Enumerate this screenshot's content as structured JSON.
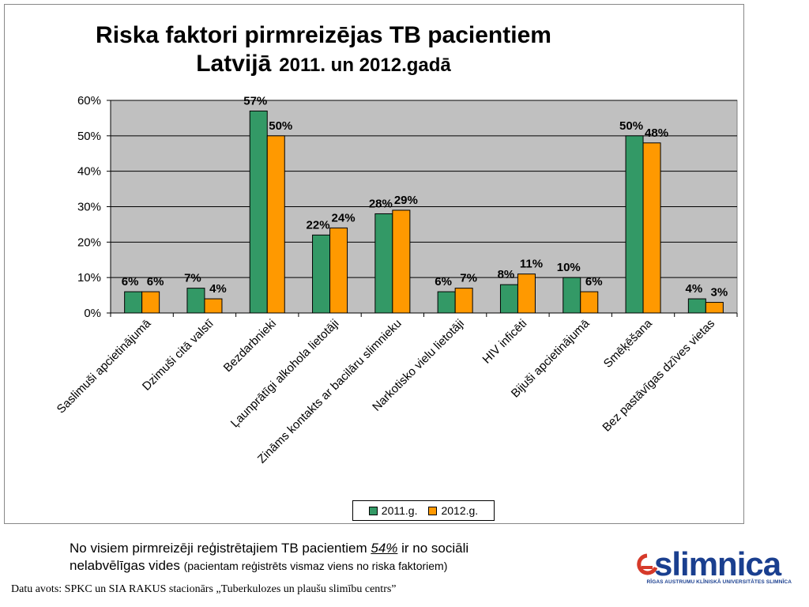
{
  "title": {
    "line1": "Riska faktori pirmreizējas TB pacientiem",
    "line2a": "Latvijā",
    "line2b": "2011. un 2012.gadā"
  },
  "chart_data": {
    "type": "bar",
    "categories": [
      "Saslimuši apcietinājumā",
      "Dzimuši citā valstī",
      "Bezdarbnieki",
      "Ļaunprātīgi alkohola lietotāji",
      "Zināms kontakts ar bacilāru slimnieku",
      "Narkotisko vielu lietotāji",
      "HIV inficēti",
      "Bijuši apcietinājumā",
      "Smēķēšana",
      "Bez pastāvīgas dzīves vietas"
    ],
    "series": [
      {
        "name": "2011.g.",
        "color": "#339966",
        "values": [
          6,
          7,
          57,
          22,
          28,
          6,
          8,
          10,
          50,
          4
        ],
        "labels": [
          "6%",
          "7%",
          "57%",
          "22%",
          "28%",
          "6%",
          "8%",
          "10%",
          "50%",
          "4%"
        ]
      },
      {
        "name": "2012.g.",
        "color": "#FF9900",
        "values": [
          6,
          4,
          50,
          24,
          29,
          7,
          11,
          6,
          48,
          3
        ],
        "labels": [
          "6%",
          "4%",
          "50%",
          "24%",
          "29%",
          "7%",
          "11%",
          "6%",
          "48%",
          "3%"
        ]
      }
    ],
    "yticks": [
      "0%",
      "10%",
      "20%",
      "30%",
      "40%",
      "50%",
      "60%"
    ],
    "ylim": [
      0,
      60
    ],
    "grid": true,
    "plot_background": "#C0C0C0",
    "legend_position": "bottom"
  },
  "note": {
    "text_before": "No visiem pirmreizēji reģistrētajiem TB pacientiem ",
    "highlight": "54%",
    "text_after": " ir no sociāli",
    "line2": "nelabvēlīgas vides ",
    "small": "(pacientam reģistrēts vismaz viens no riska faktoriem)"
  },
  "source": "Datu avots: SPKC un SIA RAKUS stacionārs „Tuberkulozes un plaušu slimību centrs”",
  "logo": {
    "word": "slimnica",
    "subtitle": "RĪGAS AUSTRUMU KLĪNISKĀ UNIVERSITĀTES SLIMNĪCA"
  }
}
